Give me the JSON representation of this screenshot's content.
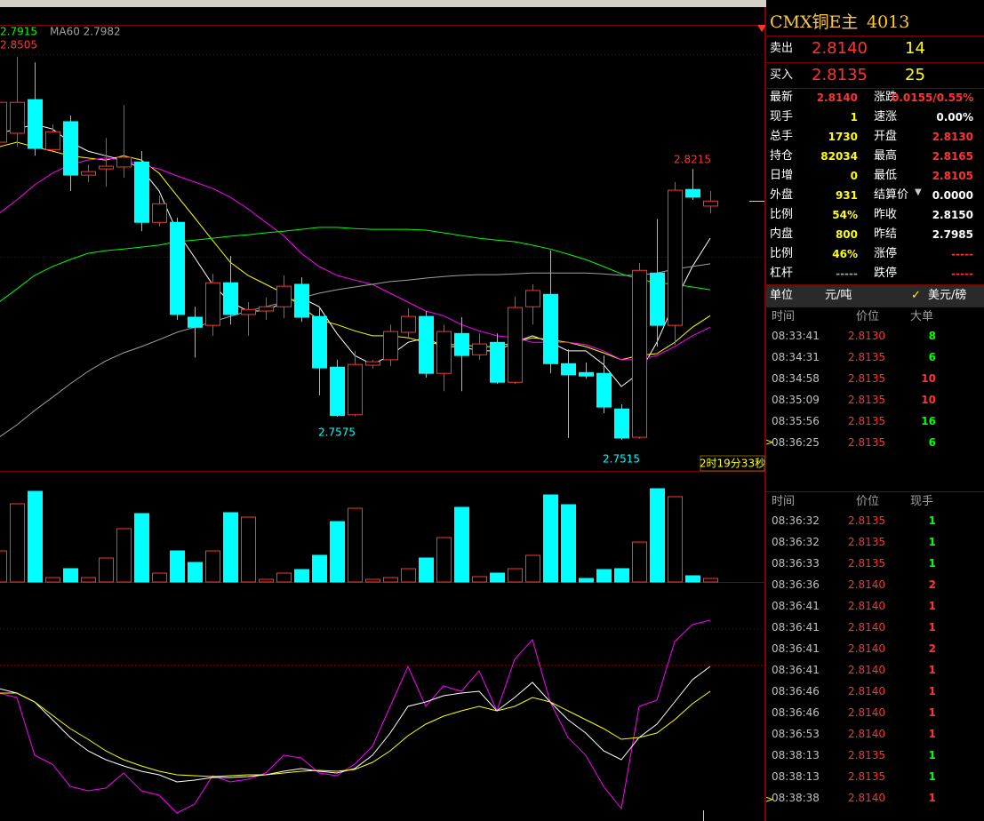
{
  "chart_data": [
    {
      "type": "candlestick",
      "open": [
        2.8284,
        2.8307,
        2.8394,
        2.8265,
        2.8337,
        2.8199,
        2.8215,
        2.822,
        2.8233,
        2.8077,
        2.8077,
        2.7832,
        2.7811,
        2.7921,
        2.7839,
        2.7848,
        2.7859,
        2.7917,
        2.7834,
        2.7703,
        2.758,
        2.7708,
        2.7722,
        2.7793,
        2.7834,
        2.7687,
        2.779,
        2.7735,
        2.7767,
        2.7664,
        2.7859,
        2.7891,
        2.7712,
        2.7689,
        2.7687,
        2.7595,
        2.7522,
        2.7946,
        2.7811,
        2.8162,
        2.8119
      ],
      "high": [
        2.8422,
        2.8505,
        2.849,
        2.833,
        2.8353,
        2.8226,
        2.8295,
        2.838,
        2.8261,
        2.8146,
        2.8089,
        2.7859,
        2.7944,
        2.799,
        2.7871,
        2.7882,
        2.794,
        2.7935,
        2.7859,
        2.7722,
        2.7745,
        2.7722,
        2.7813,
        2.7855,
        2.7848,
        2.7813,
        2.7832,
        2.779,
        2.779,
        2.7885,
        2.7917,
        2.8004,
        2.7749,
        2.7715,
        2.7733,
        2.7607,
        2.7972,
        2.8086,
        2.8181,
        2.8215,
        2.8158
      ],
      "low": [
        2.8272,
        2.8272,
        2.8249,
        2.8261,
        2.8158,
        2.8181,
        2.8169,
        2.8192,
        2.8054,
        2.8066,
        2.7825,
        2.7728,
        2.7784,
        2.7813,
        2.7784,
        2.7825,
        2.7829,
        2.782,
        2.763,
        2.7575,
        2.7576,
        2.7699,
        2.7706,
        2.7779,
        2.7676,
        2.7641,
        2.7641,
        2.7722,
        2.766,
        2.766,
        2.7813,
        2.7687,
        2.752,
        2.7673,
        2.7584,
        2.7515,
        2.7518,
        2.7756,
        2.7761,
        2.8135,
        2.81
      ],
      "close": [
        2.8387,
        2.8387,
        2.8268,
        2.8311,
        2.8199,
        2.8208,
        2.8222,
        2.8245,
        2.8077,
        2.8125,
        2.7839,
        2.7806,
        2.7921,
        2.7839,
        2.7852,
        2.7859,
        2.7912,
        2.7832,
        2.7701,
        2.7578,
        2.771,
        2.7717,
        2.7795,
        2.7834,
        2.7687,
        2.7795,
        2.7733,
        2.7763,
        2.7664,
        2.7857,
        2.7901,
        2.7712,
        2.7683,
        2.768,
        2.76,
        2.752,
        2.7953,
        2.7811,
        2.816,
        2.8142,
        2.8132
      ],
      "up_color": "#ff3232",
      "down_color": "#00ffff",
      "ylim": [
        2.7435,
        2.8587
      ],
      "series": [
        {
          "color": "#ffffff",
          "values": [
            2.8307,
            2.8318,
            2.833,
            2.8318,
            2.8284,
            2.8261,
            2.8249,
            2.8238,
            2.8215,
            2.8158,
            2.8054,
            2.7986,
            2.7917,
            2.7871,
            2.7848,
            2.7848,
            2.7871,
            2.7882,
            2.7859,
            2.779,
            2.7733,
            2.771,
            2.7733,
            2.7767,
            2.7779,
            2.7756,
            2.7756,
            2.7745,
            2.7745,
            2.7767,
            2.7784,
            2.7767,
            2.7745,
            2.7745,
            2.771,
            2.7653,
            2.7687,
            2.7767,
            2.7871,
            2.7963,
            2.8036
          ]
        },
        {
          "color": "#ffff00",
          "values": [
            2.8272,
            2.8284,
            2.8272,
            2.8261,
            2.8249,
            2.8243,
            2.8238,
            2.8249,
            2.8238,
            2.8204,
            2.8146,
            2.8089,
            2.8031,
            2.7974,
            2.794,
            2.7917,
            2.7894,
            2.7859,
            2.7825,
            2.7813,
            2.7797,
            2.7784,
            2.7784,
            2.7779,
            2.7767,
            2.7761,
            2.7761,
            2.7756,
            2.7756,
            2.7767,
            2.7779,
            2.7774,
            2.7767,
            2.7756,
            2.774,
            2.7722,
            2.7733,
            2.7738,
            2.7767,
            2.7806,
            2.7836
          ]
        },
        {
          "color": "#ff00ff",
          "values": [
            2.81,
            2.8135,
            2.8174,
            2.8204,
            2.8226,
            2.8238,
            2.8243,
            2.8238,
            2.8226,
            2.8215,
            2.8197,
            2.8181,
            2.8165,
            2.8142,
            2.8112,
            2.8077,
            2.8043,
            2.7997,
            2.7963,
            2.794,
            2.7928,
            2.7917,
            2.7894,
            2.7871,
            2.7848,
            2.7836,
            2.7813,
            2.7797,
            2.7784,
            2.7779,
            2.7767,
            2.7767,
            2.7767,
            2.7761,
            2.7745,
            2.7722,
            2.7722,
            2.7733,
            2.7756,
            2.7784,
            2.7806
          ]
        },
        {
          "color": "#00ff00",
          "values": [
            2.7871,
            2.7905,
            2.794,
            2.7963,
            2.7981,
            2.7997,
            2.8004,
            2.8008,
            2.8013,
            2.8018,
            2.8027,
            2.8031,
            2.8036,
            2.8041,
            2.8045,
            2.805,
            2.8054,
            2.8059,
            2.8064,
            2.8064,
            2.8061,
            2.8059,
            2.8059,
            2.8059,
            2.8057,
            2.805,
            2.8043,
            2.8036,
            2.8031,
            2.8027,
            2.8018,
            2.8008,
            2.7995,
            2.7981,
            2.7963,
            2.7944,
            2.793,
            2.7921,
            2.7917,
            2.791,
            2.7903
          ]
        },
        {
          "color": "#a0a0a0",
          "values": [
            2.7522,
            2.7554,
            2.7591,
            2.7625,
            2.766,
            2.7692,
            2.7719,
            2.774,
            2.7756,
            2.7774,
            2.7793,
            2.7806,
            2.782,
            2.7834,
            2.7848,
            2.7859,
            2.7871,
            2.7882,
            2.7894,
            2.7903,
            2.791,
            2.7917,
            2.7924,
            2.7928,
            2.7933,
            2.7937,
            2.794,
            2.7942,
            2.7942,
            2.7944,
            2.7946,
            2.7946,
            2.7946,
            2.7946,
            2.7944,
            2.794,
            2.794,
            2.7946,
            2.7956,
            2.7963,
            2.797
          ]
        }
      ],
      "legend": [
        {
          "label": "2.7915",
          "color": "#00ff00"
        },
        {
          "label": "MA60 2.7982",
          "color": "#a0a0a0"
        }
      ],
      "timer": "2时19分33秒"
    },
    {
      "type": "bar",
      "values": [
        35,
        88,
        102,
        5,
        15,
        5,
        27,
        60,
        77,
        10,
        35,
        22,
        35,
        78,
        73,
        3,
        10,
        14,
        30,
        68,
        83,
        3,
        5,
        15,
        27,
        50,
        84,
        6,
        10,
        15,
        30,
        98,
        87,
        4,
        14,
        15,
        45,
        105,
        96,
        7,
        4
      ],
      "ylim": [
        0,
        125
      ]
    },
    {
      "type": "line",
      "ylim": [
        -9.5,
        125
      ],
      "series": [
        {
          "color": "#ff00ff",
          "values": [
            62.5,
            60,
            27.5,
            22.5,
            10,
            7.5,
            9,
            17.5,
            7.5,
            5,
            -5,
            0,
            16,
            12.5,
            14,
            17.5,
            27.5,
            26,
            17.5,
            16,
            22.5,
            32.5,
            55,
            77.5,
            55,
            66.5,
            63.5,
            75,
            52.5,
            81.5,
            92.5,
            57.5,
            37.5,
            27.5,
            10,
            -2.5,
            55,
            58.5,
            91.5,
            101,
            103.5
          ]
        },
        {
          "color": "#ffffff",
          "values": [
            65,
            62.5,
            57.5,
            47.5,
            37.5,
            30,
            25,
            21.5,
            18.5,
            16.5,
            12.5,
            13.5,
            15,
            15,
            15.5,
            16.5,
            18.5,
            20,
            18.5,
            17.5,
            20,
            27.5,
            40,
            55,
            57.5,
            61,
            62.5,
            63.5,
            52.5,
            60,
            68.5,
            57.5,
            47.5,
            40,
            30,
            25,
            37.5,
            45,
            57.5,
            70,
            77.5
          ]
        },
        {
          "color": "#ffff00",
          "values": [
            62.5,
            62.5,
            57.5,
            50,
            42.5,
            36.5,
            30,
            25,
            21.5,
            18.5,
            16.5,
            16,
            15.5,
            16,
            16.5,
            16.5,
            17.5,
            18.5,
            19,
            18.5,
            19.5,
            23.5,
            30,
            38.5,
            45,
            49.5,
            52.5,
            55,
            52.5,
            55,
            60,
            57.5,
            52.5,
            47.5,
            42.5,
            36.5,
            37.5,
            40,
            47.5,
            56.5,
            63.5
          ]
        }
      ]
    }
  ],
  "quote": {
    "title": "CMX铜E主",
    "code": "4013",
    "ask": {
      "label": "卖出",
      "price": "2.8140",
      "volume": "14"
    },
    "bid": {
      "label": "买入",
      "price": "2.8135",
      "volume": "25"
    },
    "stats": [
      [
        {
          "label": "最新",
          "value": "2.8140",
          "color": "#ff3232"
        },
        {
          "label": "涨跌",
          "value": "0.0155/0.55%",
          "color": "#ff3232"
        }
      ],
      [
        {
          "label": "现手",
          "value": "1",
          "color": "#ffff00"
        },
        {
          "label": "速涨",
          "value": "0.00%",
          "color": "#ffffff"
        }
      ],
      [
        {
          "label": "总手",
          "value": "1730",
          "color": "#ffff00"
        },
        {
          "label": "开盘",
          "value": "2.8130",
          "color": "#ff3232"
        }
      ],
      [
        {
          "label": "持仓",
          "value": "82034",
          "color": "#ffff00"
        },
        {
          "label": "最高",
          "value": "2.8165",
          "color": "#ff3232"
        }
      ],
      [
        {
          "label": "日增",
          "value": "0",
          "color": "#ffff00"
        },
        {
          "label": "最低",
          "value": "2.8105",
          "color": "#ff3232"
        }
      ],
      [
        {
          "label": "外盘",
          "value": "931",
          "color": "#ffff00"
        },
        {
          "label": "结算价",
          "value": "0.0000",
          "color": "#ffffff"
        }
      ],
      [
        {
          "label": "比例",
          "value": "54%",
          "color": "#ffff00"
        },
        {
          "label": "昨收",
          "value": "2.8150",
          "color": "#ffffff"
        }
      ],
      [
        {
          "label": "内盘",
          "value": "800",
          "color": "#ffff00"
        },
        {
          "label": "昨结",
          "value": "2.7985",
          "color": "#ffffff"
        }
      ],
      [
        {
          "label": "比例",
          "value": "46%",
          "color": "#ffff00"
        },
        {
          "label": "涨停",
          "value": "-----",
          "color": "#ff3232"
        }
      ],
      [
        {
          "label": "杠杆",
          "value": "-----",
          "color": "#a0a0a0"
        },
        {
          "label": "跌停",
          "value": "-----",
          "color": "#ff3232"
        }
      ]
    ],
    "unit": {
      "label": "单位",
      "value": "元/吨",
      "option": "美元/磅"
    },
    "big_orders": {
      "columns": [
        "时间",
        "价位",
        "大单"
      ],
      "rows": [
        [
          "08:33:41",
          "2.8130",
          "8"
        ],
        [
          "08:34:31",
          "2.8135",
          "6"
        ],
        [
          "08:34:58",
          "2.8135",
          "10"
        ],
        [
          "08:35:09",
          "2.8135",
          "10"
        ],
        [
          "08:35:56",
          "2.8135",
          "16"
        ],
        [
          "08:36:25",
          "2.8135",
          "6"
        ]
      ],
      "colors": [
        "#00ff00",
        "#00ff00",
        "#ff3232",
        "#ff3232",
        "#00ff00",
        "#00ff00"
      ]
    },
    "trades": {
      "columns": [
        "时间",
        "价位",
        "现手"
      ],
      "rows": [
        [
          "08:36:32",
          "2.8135",
          "1"
        ],
        [
          "08:36:32",
          "2.8135",
          "1"
        ],
        [
          "08:36:33",
          "2.8135",
          "1"
        ],
        [
          "08:36:36",
          "2.8140",
          "2"
        ],
        [
          "08:36:41",
          "2.8140",
          "1"
        ],
        [
          "08:36:41",
          "2.8140",
          "1"
        ],
        [
          "08:36:41",
          "2.8140",
          "2"
        ],
        [
          "08:36:41",
          "2.8140",
          "1"
        ],
        [
          "08:36:46",
          "2.8140",
          "1"
        ],
        [
          "08:36:46",
          "2.8140",
          "1"
        ],
        [
          "08:36:53",
          "2.8140",
          "1"
        ],
        [
          "08:38:13",
          "2.8135",
          "1"
        ],
        [
          "08:38:13",
          "2.8135",
          "1"
        ],
        [
          "08:38:38",
          "2.8140",
          "1"
        ]
      ],
      "colors": [
        "#00ff00",
        "#00ff00",
        "#00ff00",
        "#ff3232",
        "#ff3232",
        "#ff3232",
        "#ff3232",
        "#ff3232",
        "#ff3232",
        "#ff3232",
        "#ff3232",
        "#00ff00",
        "#00ff00",
        "#ff3232"
      ]
    }
  }
}
